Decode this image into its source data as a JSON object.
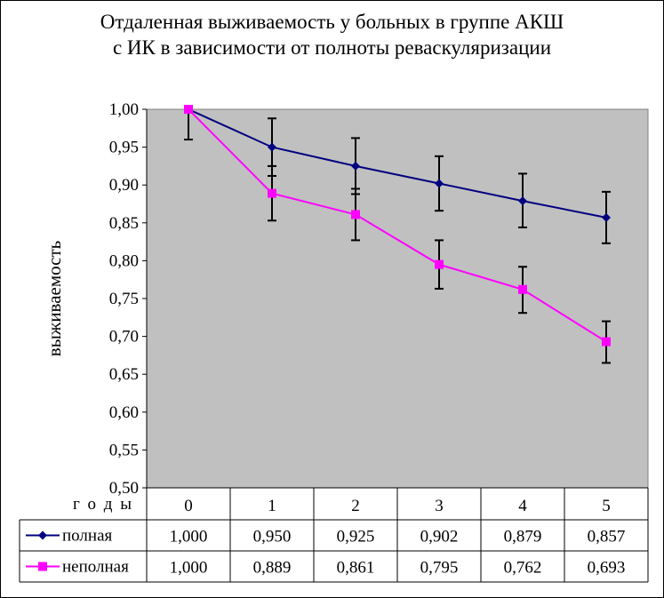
{
  "chart_data": {
    "type": "line",
    "title": [
      "Отдаленная выживаемость у больных  в группе АКШ",
      "с ИК в зависимости от полноты реваскуляризации"
    ],
    "ylabel": "выживаемость",
    "xlabel": "г о д ы",
    "ylim": [
      0.5,
      1.0
    ],
    "yticks": [
      "0,50",
      "0,55",
      "0,60",
      "0,65",
      "0,70",
      "0,75",
      "0,80",
      "0,85",
      "0,90",
      "0,95",
      "1,00"
    ],
    "categories": [
      "0",
      "1",
      "2",
      "3",
      "4",
      "5"
    ],
    "plot_background": "#c0c0c0",
    "grid": false,
    "legend": "data-table",
    "series": [
      {
        "name": "полная",
        "values": [
          1.0,
          0.95,
          0.925,
          0.902,
          0.879,
          0.857
        ],
        "labels": [
          "1,000",
          "0,950",
          "0,925",
          "0,902",
          "0,879",
          "0,857"
        ],
        "err_low": [
          1.0,
          0.912,
          0.888,
          0.866,
          0.844,
          0.823
        ],
        "err_high": [
          1.0,
          0.988,
          0.962,
          0.938,
          0.915,
          0.891
        ],
        "color": "#000080",
        "marker": "diamond"
      },
      {
        "name": "неполная",
        "values": [
          1.0,
          0.889,
          0.861,
          0.795,
          0.762,
          0.693
        ],
        "labels": [
          "1,000",
          "0,889",
          "0,861",
          "0,795",
          "0,762",
          "0,693"
        ],
        "err_low": [
          0.96,
          0.853,
          0.827,
          0.763,
          0.731,
          0.665
        ],
        "err_high": [
          1.0,
          0.925,
          0.895,
          0.827,
          0.792,
          0.72
        ],
        "color": "#ff00ff",
        "marker": "square"
      }
    ]
  }
}
